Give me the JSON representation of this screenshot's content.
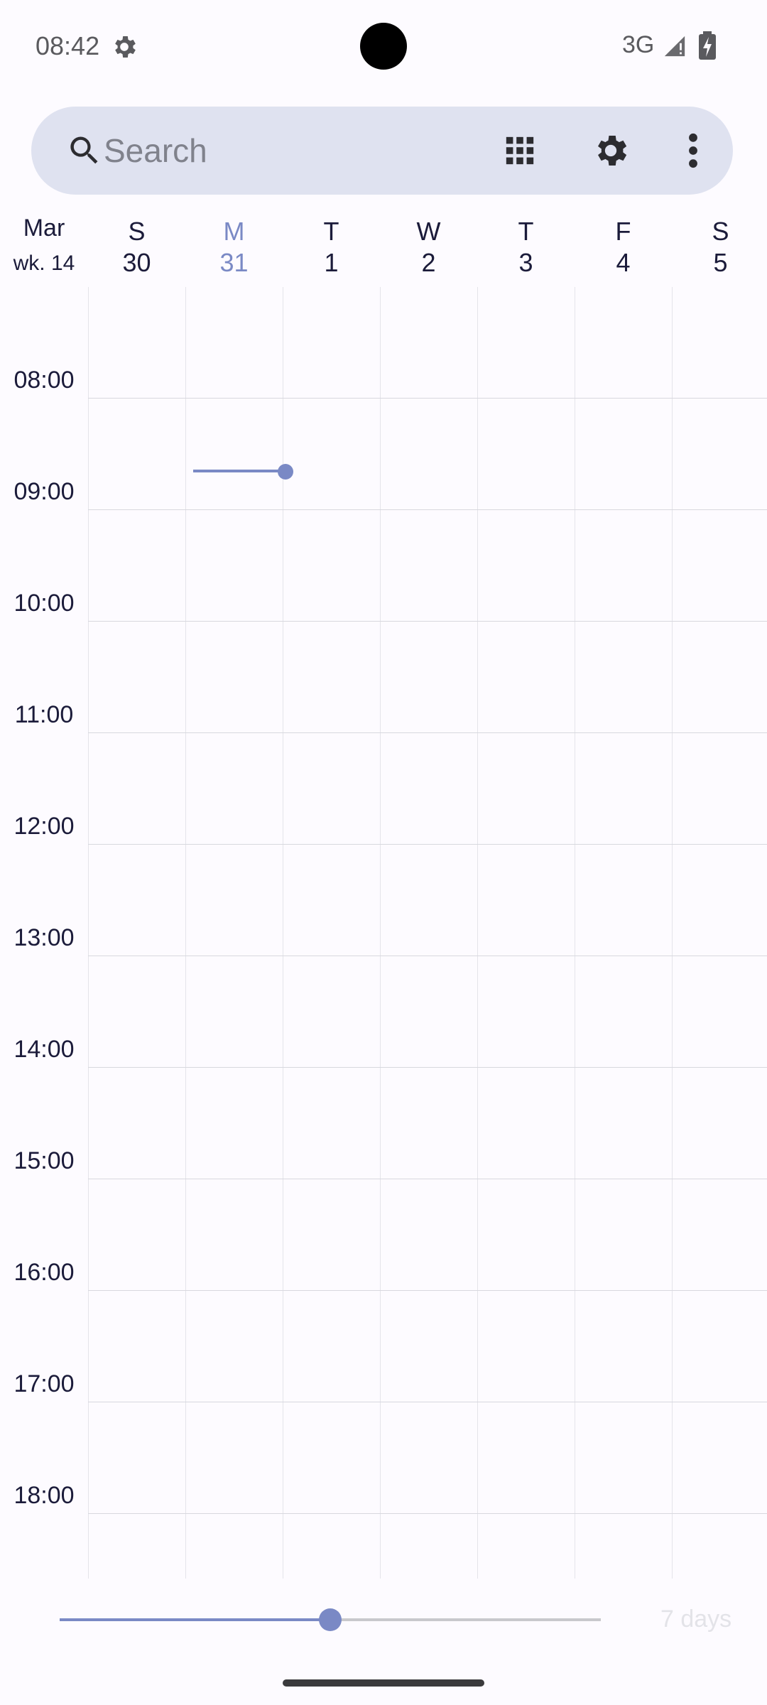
{
  "status_bar": {
    "time": "08:42",
    "network": "3G"
  },
  "search": {
    "placeholder": "Search",
    "value": ""
  },
  "week_header": {
    "month": "Mar",
    "week": "wk. 14",
    "days": [
      {
        "dow": "S",
        "date": "30",
        "today": false
      },
      {
        "dow": "M",
        "date": "31",
        "today": true
      },
      {
        "dow": "T",
        "date": "1",
        "today": false
      },
      {
        "dow": "W",
        "date": "2",
        "today": false
      },
      {
        "dow": "T",
        "date": "3",
        "today": false
      },
      {
        "dow": "F",
        "date": "4",
        "today": false
      },
      {
        "dow": "S",
        "date": "5",
        "today": false
      }
    ]
  },
  "hours": [
    "08:00",
    "09:00",
    "10:00",
    "11:00",
    "12:00",
    "13:00",
    "14:00",
    "15:00",
    "16:00",
    "17:00",
    "18:00"
  ],
  "zoom": {
    "label": "7 days",
    "slider_fraction": 0.5
  },
  "colors": {
    "accent": "#7a89c5",
    "toolbar_bg": "#dfe2f0",
    "background": "#fdfbff"
  },
  "icons": {
    "search": "search-icon",
    "apps": "apps-grid-icon",
    "settings": "gear-icon",
    "more": "more-vert-icon"
  }
}
